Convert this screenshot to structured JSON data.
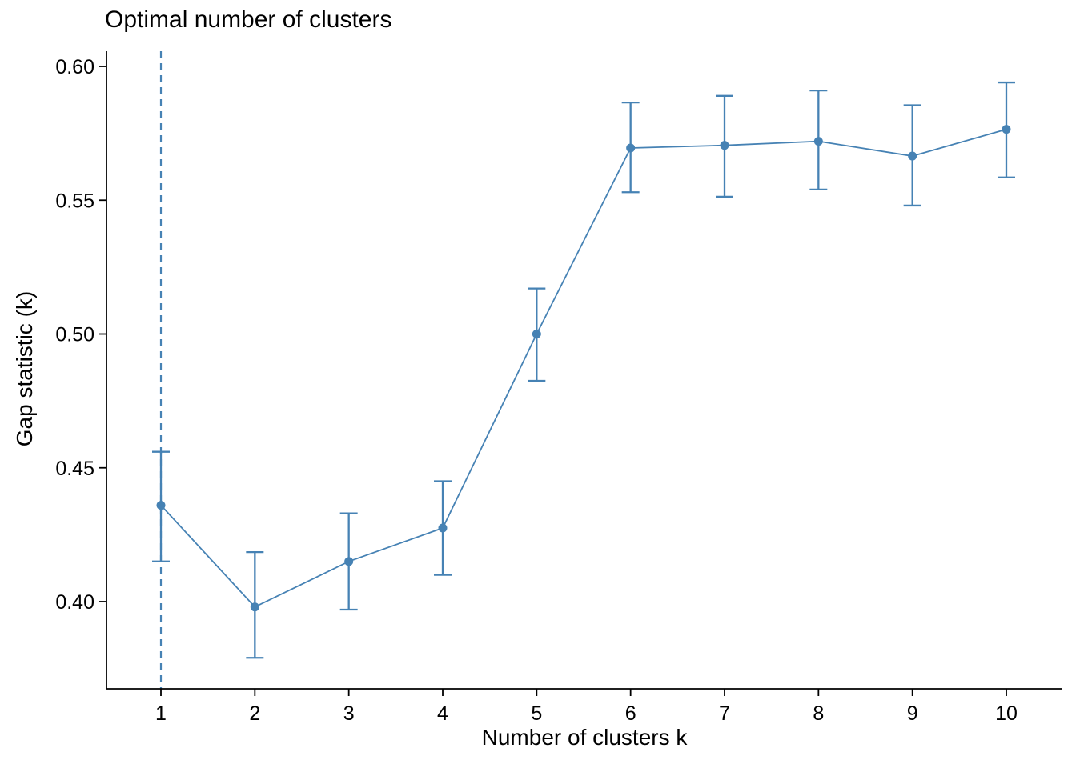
{
  "chart_data": {
    "type": "line",
    "title": "Optimal number of clusters",
    "xlabel": "Number of clusters k",
    "ylabel": "Gap statistic (k)",
    "x": [
      1,
      2,
      3,
      4,
      5,
      6,
      7,
      8,
      9,
      10
    ],
    "series": [
      {
        "name": "Gap statistic",
        "values": [
          0.436,
          0.398,
          0.415,
          0.4275,
          0.5,
          0.5695,
          0.5705,
          0.572,
          0.5665,
          0.5765
        ]
      }
    ],
    "error_low": [
      0.415,
      0.379,
      0.397,
      0.41,
      0.4825,
      0.553,
      0.5513,
      0.554,
      0.548,
      0.5585
    ],
    "error_high": [
      0.456,
      0.4185,
      0.433,
      0.445,
      0.517,
      0.5865,
      0.589,
      0.591,
      0.5855,
      0.594
    ],
    "yticks": [
      {
        "value": 0.4,
        "label": "0.40"
      },
      {
        "value": 0.45,
        "label": "0.45"
      },
      {
        "value": 0.5,
        "label": "0.50"
      },
      {
        "value": 0.55,
        "label": "0.55"
      },
      {
        "value": 0.6,
        "label": "0.60"
      }
    ],
    "ylim": [
      0.367,
      0.606
    ],
    "xlim": [
      1,
      10
    ],
    "vline_x": 1,
    "vline_style": "dashed",
    "grid": false,
    "legend": false,
    "accent_color": "#4682B4",
    "axis_color": "#000000",
    "text_color": "#000000",
    "background_color": "#ffffff"
  }
}
